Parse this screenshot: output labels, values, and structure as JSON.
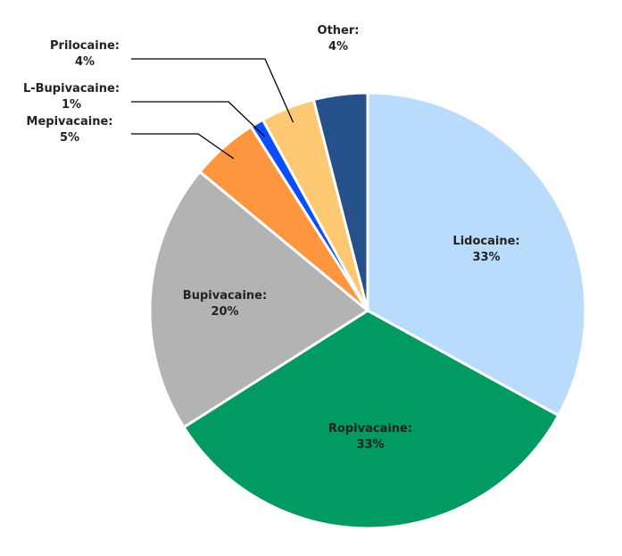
{
  "chart_data": {
    "type": "pie",
    "title": "",
    "start_angle_deg": 0,
    "direction": "clockwise",
    "slices": [
      {
        "name": "Lidocaine",
        "value": 33,
        "label": "Lidocaine:",
        "pct_label": "33%",
        "color": "#b9dcfc",
        "label_placement": "inside"
      },
      {
        "name": "Ropivacaine",
        "value": 33,
        "label": "Ropivacaine:",
        "pct_label": "33%",
        "color": "#009a62",
        "label_placement": "inside"
      },
      {
        "name": "Bupivacaine",
        "value": 20,
        "label": "Bupivacaine:",
        "pct_label": "20%",
        "color": "#b3b3b3",
        "label_placement": "inside"
      },
      {
        "name": "Mepivacaine",
        "value": 5,
        "label": "Mepivacaine:",
        "pct_label": "5%",
        "color": "#fd963e",
        "label_placement": "outside"
      },
      {
        "name": "L-Bupivacaine",
        "value": 1,
        "label": "L-Bupivacaine:",
        "pct_label": "1%",
        "color": "#0b4dff",
        "label_placement": "outside"
      },
      {
        "name": "Prilocaine",
        "value": 4,
        "label": "Prilocaine:",
        "pct_label": "4%",
        "color": "#fdc872",
        "label_placement": "outside"
      },
      {
        "name": "Other",
        "value": 4,
        "label": "Other:",
        "pct_label": "4%",
        "color": "#25508a",
        "label_placement": "outside"
      }
    ]
  }
}
